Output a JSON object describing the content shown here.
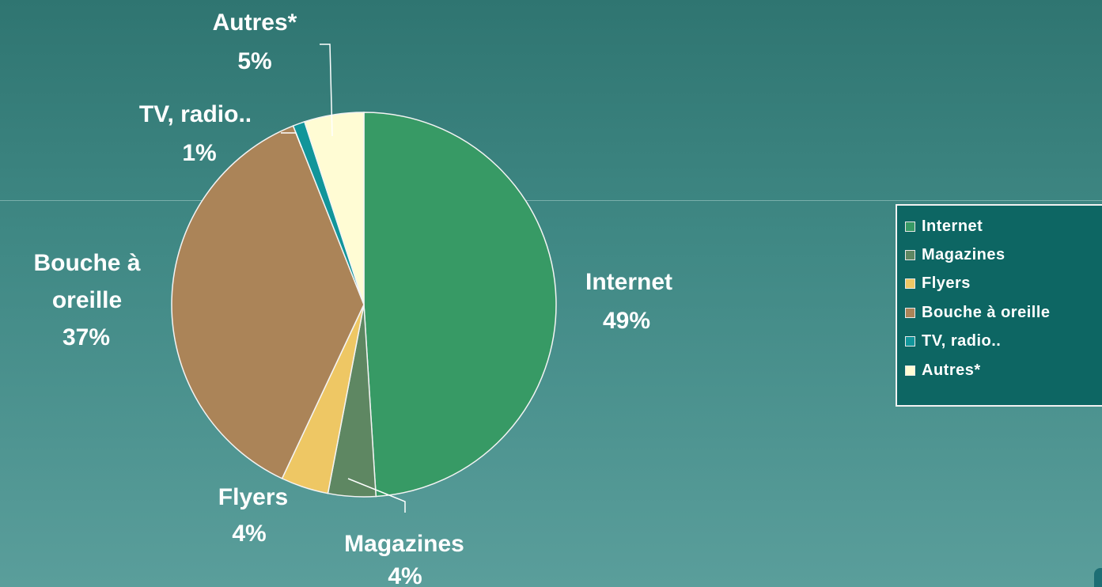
{
  "chart_data": {
    "type": "pie",
    "title": "",
    "categories": [
      "Internet",
      "Magazines",
      "Flyers",
      "Bouche à oreille",
      "TV, radio..",
      "Autres*"
    ],
    "values": [
      49,
      4,
      4,
      37,
      1,
      5
    ],
    "labels": {
      "internet": {
        "name": "Internet",
        "percent": "49%"
      },
      "magazines": {
        "name": "Magazines",
        "percent": "4%"
      },
      "flyers": {
        "name": "Flyers",
        "percent": "4%"
      },
      "bouche": {
        "line1": "Bouche à",
        "line2": "oreille",
        "percent": "37%"
      },
      "tvradio": {
        "name": "TV, radio..",
        "percent": "1%"
      },
      "autres": {
        "name": "Autres*",
        "percent": "5%"
      }
    },
    "colors": [
      "#379a65",
      "#5e8762",
      "#eec764",
      "#ab8458",
      "#11959a",
      "#fffcd4"
    ],
    "legend_position": "right",
    "legend": [
      "Internet",
      "Magazines",
      "Flyers",
      "Bouche à oreille",
      "TV, radio..",
      "Autres*"
    ]
  }
}
